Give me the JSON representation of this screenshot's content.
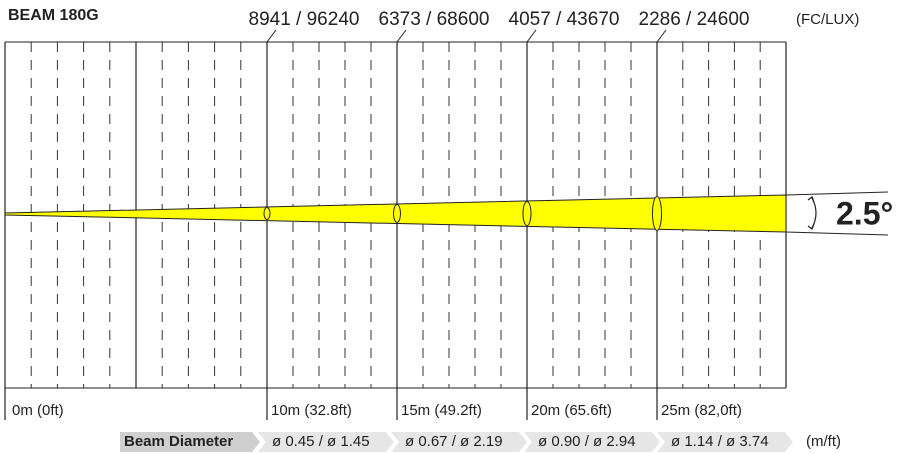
{
  "header": {
    "title": "BEAM 180G"
  },
  "illuminance": {
    "unit": "(FC/LUX)",
    "values": [
      "8941 / 96240",
      "6373 / 68600",
      "4057 / 43670",
      "2286 / 24600"
    ]
  },
  "beam_angle": "2.5°",
  "distances": [
    "0m (0ft)",
    "10m (32.8ft)",
    "15m (49.2ft)",
    "20m (65.6ft)",
    "25m (82,0ft)"
  ],
  "beam_diameter": {
    "label": "Beam Diameter",
    "values": [
      "ø 0.45 / ø 1.45",
      "ø 0.67 / ø 2.19",
      "ø 0.90 / ø 2.94",
      "ø 1.14 / ø 3.74"
    ],
    "unit": "(m/ft)"
  }
}
